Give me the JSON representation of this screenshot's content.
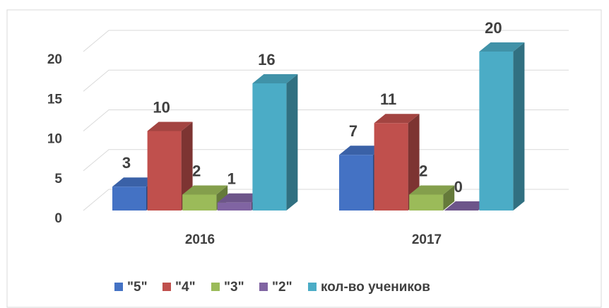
{
  "chart_data": {
    "type": "bar3d",
    "categories": [
      "2016",
      "2017"
    ],
    "series": [
      {
        "name": "\"5\"",
        "color": "#4472c4",
        "values": [
          3,
          7
        ]
      },
      {
        "name": "\"4\"",
        "color": "#c0504d",
        "values": [
          10,
          11
        ]
      },
      {
        "name": "\"3\"",
        "color": "#9bbb59",
        "values": [
          2,
          2
        ]
      },
      {
        "name": "\"2\"",
        "color": "#8064a2",
        "values": [
          1,
          0
        ]
      },
      {
        "name": "кол-во учеников",
        "color": "#4bacc6",
        "values": [
          16,
          20
        ]
      }
    ],
    "ylim": [
      0,
      20
    ],
    "yticks": [
      0,
      5,
      10,
      15,
      20
    ],
    "grid": true,
    "legend": "bottom"
  }
}
